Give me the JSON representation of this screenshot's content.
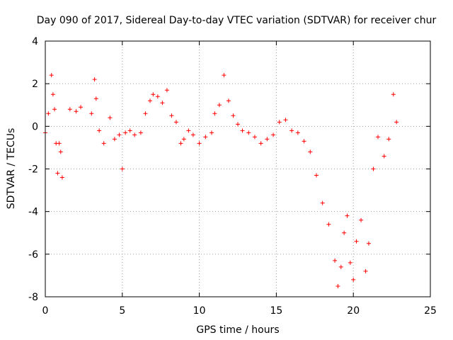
{
  "chart_data": {
    "type": "scatter",
    "title": "Day 090 of 2017, Sidereal Day-to-day VTEC variation (SDTVAR) for receiver chur",
    "xlabel": "GPS time / hours",
    "ylabel": "SDTVAR / TECUs",
    "xlim": [
      0,
      25
    ],
    "ylim": [
      -8,
      4
    ],
    "xticks": [
      0,
      5,
      10,
      15,
      20,
      25
    ],
    "yticks": [
      -8,
      -6,
      -4,
      -2,
      0,
      2,
      4
    ],
    "grid": true,
    "marker": "+",
    "color": "#ff0000",
    "series": [
      {
        "name": "SDTVAR",
        "x": [
          0.0,
          0.2,
          0.4,
          0.5,
          0.6,
          0.7,
          0.8,
          0.9,
          1.0,
          1.1,
          1.6,
          2.0,
          2.3,
          3.0,
          3.2,
          3.3,
          3.5,
          3.8,
          4.2,
          4.5,
          4.8,
          5.0,
          5.2,
          5.5,
          5.8,
          6.2,
          6.5,
          6.8,
          7.0,
          7.3,
          7.6,
          7.9,
          8.2,
          8.5,
          8.8,
          9.0,
          9.3,
          9.6,
          10.0,
          10.4,
          10.8,
          11.0,
          11.3,
          11.6,
          11.9,
          12.2,
          12.5,
          12.8,
          13.2,
          13.6,
          14.0,
          14.4,
          14.8,
          15.2,
          15.6,
          16.0,
          16.4,
          16.8,
          17.2,
          17.6,
          18.0,
          18.4,
          18.8,
          19.0,
          19.2,
          19.4,
          19.6,
          19.8,
          20.0,
          20.2,
          20.5,
          20.8,
          21.0,
          21.3,
          21.6,
          22.0,
          22.3,
          22.6,
          22.8
        ],
        "y": [
          -0.3,
          0.6,
          2.4,
          1.5,
          0.8,
          -0.8,
          -2.2,
          -0.8,
          -1.2,
          -2.4,
          0.8,
          0.7,
          0.9,
          0.6,
          2.2,
          1.3,
          -0.2,
          -0.8,
          0.4,
          -0.6,
          -0.4,
          -2.0,
          -0.3,
          -0.2,
          -0.4,
          -0.3,
          0.6,
          1.2,
          1.5,
          1.4,
          1.1,
          1.7,
          0.5,
          0.2,
          -0.8,
          -0.6,
          -0.2,
          -0.4,
          -0.8,
          -0.5,
          -0.3,
          0.6,
          1.0,
          2.4,
          1.2,
          0.5,
          0.1,
          -0.2,
          -0.3,
          -0.5,
          -0.8,
          -0.6,
          -0.4,
          0.2,
          0.3,
          -0.2,
          -0.3,
          -0.7,
          -1.2,
          -2.3,
          -3.6,
          -4.6,
          -6.3,
          -7.5,
          -6.6,
          -5.0,
          -4.2,
          -6.4,
          -7.2,
          -5.4,
          -4.4,
          -6.8,
          -5.5,
          -2.0,
          -0.5,
          -1.4,
          -0.6,
          1.5,
          0.2
        ]
      }
    ]
  }
}
